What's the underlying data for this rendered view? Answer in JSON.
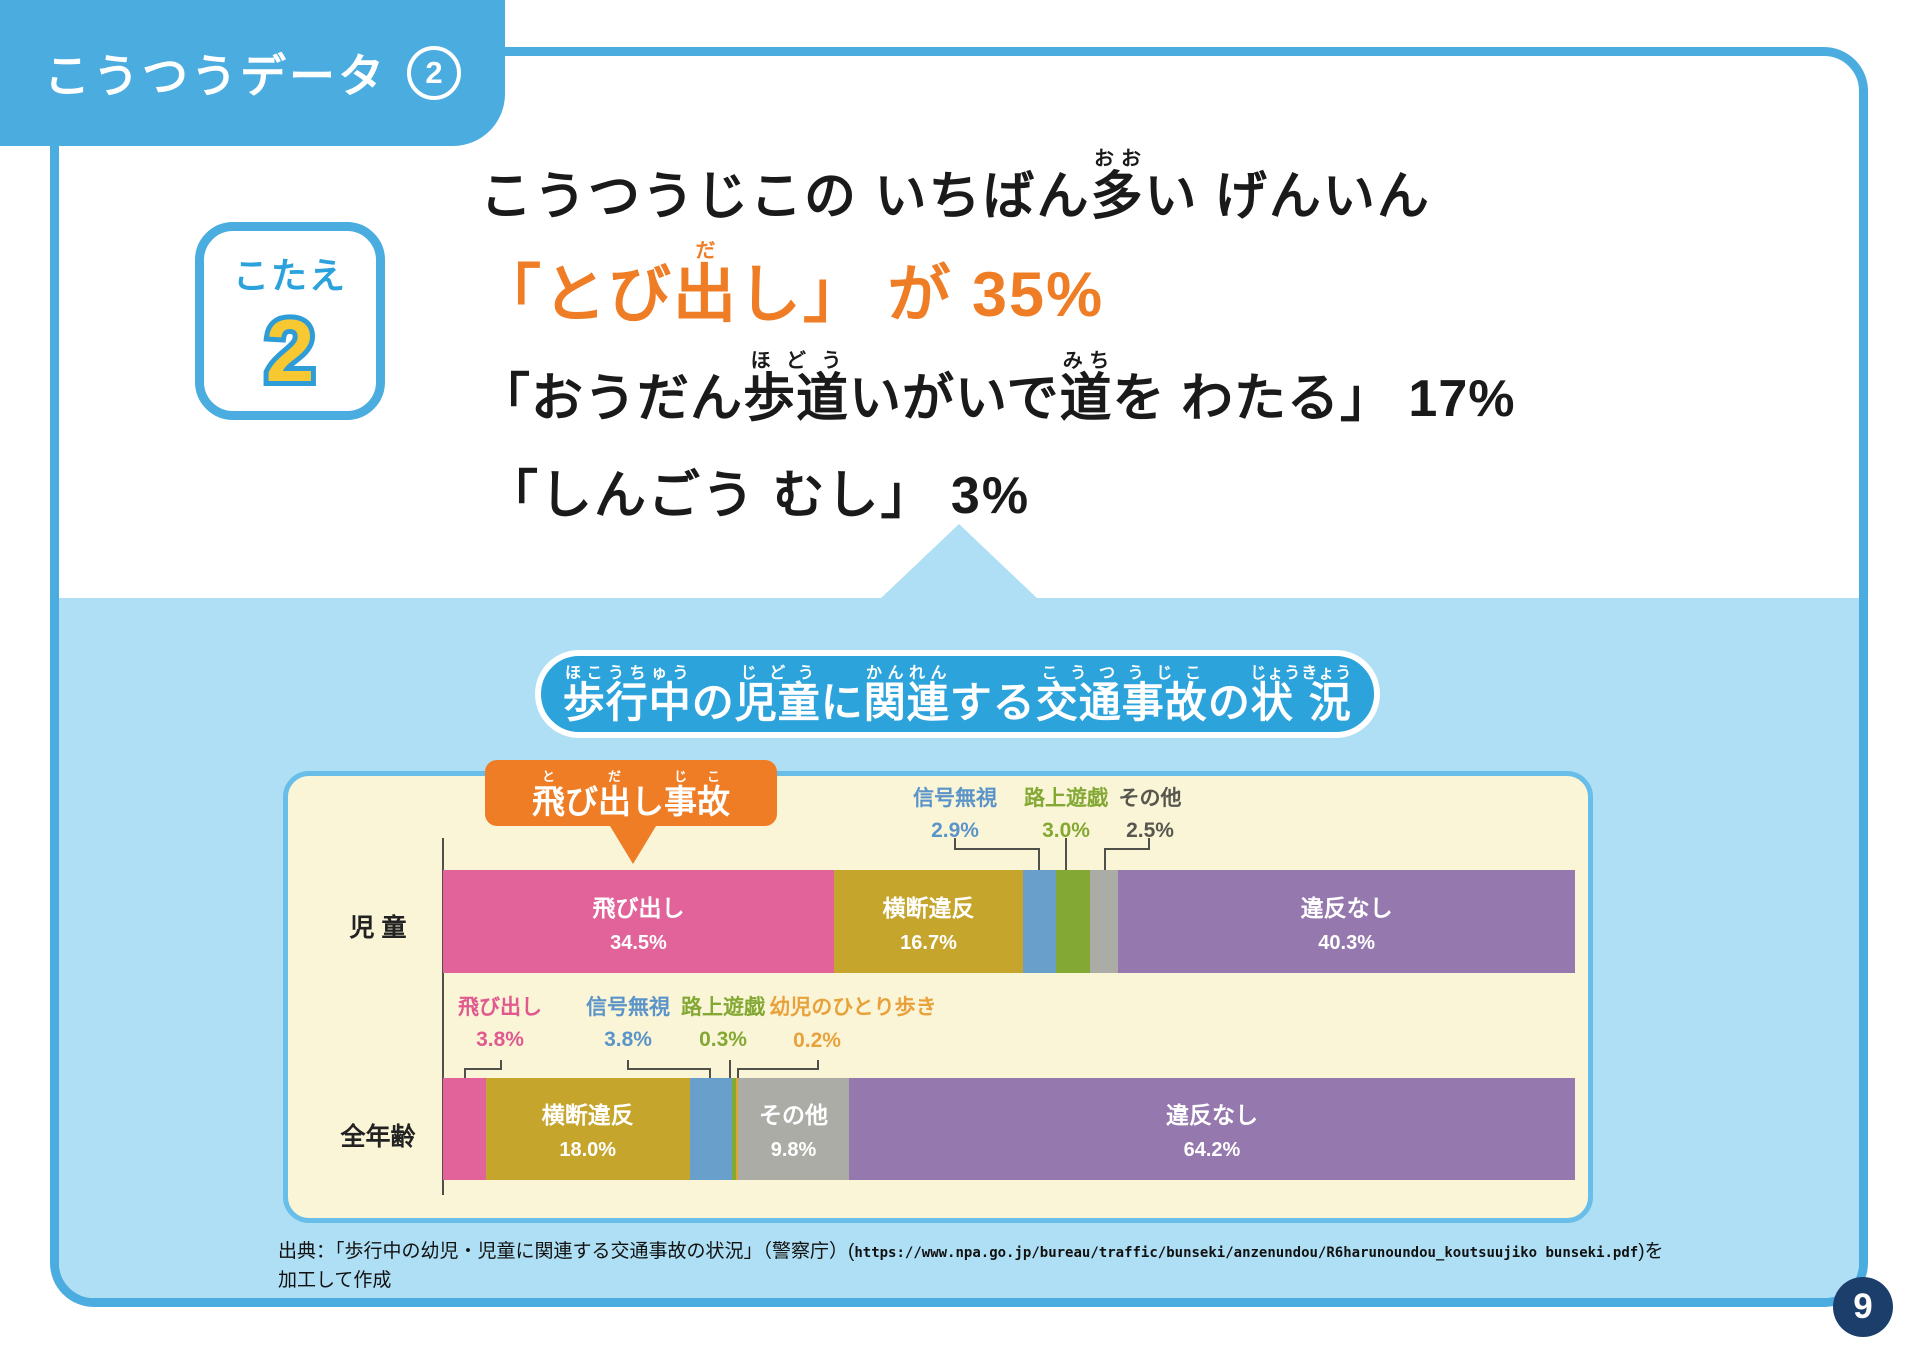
{
  "header": {
    "title": "こうつうデータ",
    "number": "2"
  },
  "answer": {
    "badge_label": "こたえ",
    "badge_number": "2",
    "lines": [
      {
        "segments": [
          {
            "t": "こうつうじこの いちばん"
          },
          {
            "t": "多",
            "r": "おお"
          },
          {
            "t": "い げんいん"
          }
        ]
      },
      {
        "segments": [
          {
            "t": "「とび"
          },
          {
            "t": "出",
            "r": "だ"
          },
          {
            "t": "し」 が 35%"
          }
        ]
      },
      {
        "segments": [
          {
            "t": "「おうだん"
          },
          {
            "t": "歩道",
            "r": "ほどう"
          },
          {
            "t": "いがいで"
          },
          {
            "t": "道",
            "r": "みち"
          },
          {
            "t": "を わたる」 17%"
          }
        ]
      },
      {
        "segments": [
          {
            "t": "「しんごう むし」 3%"
          }
        ]
      }
    ]
  },
  "chart_header": {
    "segments": [
      {
        "t": "歩行中",
        "r": "ほこうちゅう"
      },
      {
        "t": "の"
      },
      {
        "t": "児童",
        "r": "じどう"
      },
      {
        "t": "に"
      },
      {
        "t": "関連",
        "r": "かんれん"
      },
      {
        "t": "する"
      },
      {
        "t": "交通事故",
        "r": "こうつうじこ"
      },
      {
        "t": "の"
      },
      {
        "t": "状 況",
        "r": "じょうきょう"
      }
    ]
  },
  "callout": {
    "segments": [
      {
        "t": "飛",
        "r": "と"
      },
      {
        "t": "び"
      },
      {
        "t": "出",
        "r": "だ"
      },
      {
        "t": "し"
      },
      {
        "t": "事故",
        "r": "じこ"
      }
    ]
  },
  "chart_data": {
    "type": "bar",
    "orientation": "horizontal",
    "stacked": true,
    "unit": "%",
    "xlim": [
      0,
      100
    ],
    "title": "歩行中の児童に関連する交通事故の状況",
    "rows": [
      {
        "label": "児 童",
        "segments": [
          {
            "name": "飛び出し",
            "value": 34.5,
            "color": "#E2639A",
            "label_inside": true
          },
          {
            "name": "横断違反",
            "value": 16.7,
            "color": "#C6A52C",
            "label_inside": true
          },
          {
            "name": "信号無視",
            "value": 2.9,
            "color": "#689FCB",
            "label_inside": false
          },
          {
            "name": "路上遊戯",
            "value": 3.0,
            "color": "#83A834",
            "label_inside": false
          },
          {
            "name": "その他",
            "value": 2.5,
            "color": "#ACACA6",
            "label_inside": false
          },
          {
            "name": "違反なし",
            "value": 40.3,
            "color": "#9579AE",
            "label_inside": true
          }
        ]
      },
      {
        "label": "全年齢",
        "segments": [
          {
            "name": "飛び出し",
            "value": 3.8,
            "color": "#E2639A",
            "label_inside": false
          },
          {
            "name": "横断違反",
            "value": 18.0,
            "color": "#C6A52C",
            "label_inside": true
          },
          {
            "name": "信号無視",
            "value": 3.8,
            "color": "#689FCB",
            "label_inside": false
          },
          {
            "name": "路上遊戯",
            "value": 0.3,
            "color": "#83A834",
            "label_inside": false
          },
          {
            "name": "幼児のひとり歩き",
            "value": 0.2,
            "color": "#E2A336",
            "label_inside": false
          },
          {
            "name": "その他",
            "value": 9.8,
            "color": "#ACACA6",
            "label_inside": true
          },
          {
            "name": "違反なし",
            "value": 64.2,
            "color": "#9579AE",
            "label_inside": true
          }
        ]
      }
    ],
    "annotations_top": [
      {
        "name": "信号無視",
        "value": "2.9%",
        "color": "#5B94C8"
      },
      {
        "name": "路上遊戯",
        "value": "3.0%",
        "color": "#83A834"
      },
      {
        "name": "その他",
        "value": "2.5%",
        "color": "#57574E"
      }
    ],
    "annotations_bottom": [
      {
        "name": "飛び出し",
        "value": "3.8%",
        "color": "#E05A8F"
      },
      {
        "name": "信号無視",
        "value": "3.8%",
        "color": "#5B94C8"
      },
      {
        "name": "路上遊戯",
        "value": "0.3%",
        "color": "#83A834"
      },
      {
        "name": "幼児のひとり歩き",
        "value": "0.2%",
        "color": "#E8A23C"
      }
    ]
  },
  "source": {
    "prefix": "出典：「歩行中の幼児・児童に関連する交通事故の状況」（警察庁）(",
    "url": "https://www.npa.go.jp/bureau/traffic/bunseki/anzenundou/R6harunoundou_koutsuujiko bunseki.pdf",
    "suffix": ")を",
    "line2": "加工して作成"
  },
  "page_number": "9",
  "colors": {
    "frame_blue": "#4BACE0",
    "light_blue": "#AEDFF4",
    "bubble_blue": "#2CA3DB",
    "panel_bg": "#FBF5D8",
    "panel_border": "#68BEE8",
    "accent_orange": "#EE7D25",
    "answer_number_yellow": "#F8C832",
    "page_circle_navy": "#1C3E6B"
  }
}
